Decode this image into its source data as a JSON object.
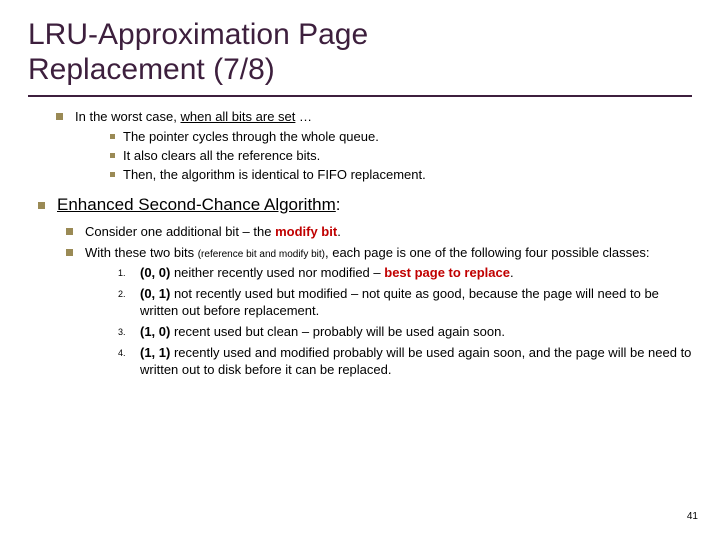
{
  "title_line1": "LRU-Approximation Page",
  "title_line2": "Replacement (7/8)",
  "worst_case_pre": "In the worst case, ",
  "worst_case_u": "when all bits are set",
  "worst_case_post": " …",
  "wc_sub1": "The pointer cycles through the whole queue.",
  "wc_sub2": "It also clears all the reference bits.",
  "wc_sub3": "Then, the algorithm is identical to FIFO replacement.",
  "section_pre": "Enhanced Second-Chance Algorithm",
  "section_colon": ":",
  "consider_pre": "Consider one additional bit – the ",
  "consider_bold": "modify bit",
  "consider_post": ".",
  "twobits_pre": "With these two bits ",
  "twobits_small": "(reference bit and modify bit)",
  "twobits_post": ", each page is one of the following four possible classes:",
  "n1": "1.",
  "n2": "2.",
  "n3": "3.",
  "n4": "4.",
  "c1_b": "(0, 0)",
  "c1_mid": " neither recently used nor modified – ",
  "c1_red": "best page to replace",
  "c1_end": ".",
  "c2_b": "(0, 1)",
  "c2_txt": " not recently used but modified – not quite as good, because the page will need to be written out before replacement.",
  "c3_b": "(1, 0)",
  "c3_txt": " recent used but clean – probably will be used again soon.",
  "c4_b": "(1, 1)",
  "c4_txt": " recently used and modified probably will be used again soon, and the page will be need to written out to disk before it can be replaced.",
  "page_num": "41"
}
